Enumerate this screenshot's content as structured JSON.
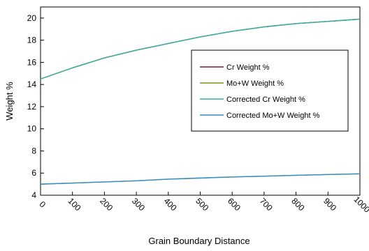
{
  "chart_data": {
    "type": "line",
    "xlabel": "Grain Boundary Distance",
    "ylabel": "Weight %",
    "xlim": [
      0,
      1000
    ],
    "ylim": [
      4,
      21
    ],
    "x_ticks": [
      "0",
      "100",
      "200",
      "300",
      "400",
      "500",
      "600",
      "700",
      "800",
      "900",
      "1000"
    ],
    "y_ticks": [
      "4",
      "6",
      "8",
      "10",
      "12",
      "14",
      "16",
      "18",
      "20"
    ],
    "grid": false,
    "legend_position": "right",
    "x": [
      0,
      100,
      200,
      300,
      400,
      500,
      600,
      700,
      800,
      900,
      1000
    ],
    "series": [
      {
        "name": "Cr Weight %",
        "color": "#8b1a1a",
        "values": [
          14.5,
          15.5,
          16.4,
          17.1,
          17.7,
          18.3,
          18.8,
          19.2,
          19.5,
          19.7,
          19.9
        ]
      },
      {
        "name": "Mo+W Weight %",
        "color": "#8c8c14",
        "values": [
          5.0,
          5.1,
          5.2,
          5.3,
          5.45,
          5.55,
          5.65,
          5.72,
          5.8,
          5.87,
          5.93
        ]
      },
      {
        "name": "Corrected Cr Weight %",
        "color": "#2fb3a3",
        "values": [
          14.5,
          15.5,
          16.4,
          17.1,
          17.7,
          18.3,
          18.8,
          19.2,
          19.5,
          19.7,
          19.9
        ]
      },
      {
        "name": "Corrected Mo+W Weight %",
        "color": "#2f8fd0",
        "values": [
          5.0,
          5.1,
          5.2,
          5.3,
          5.45,
          5.55,
          5.65,
          5.72,
          5.8,
          5.87,
          5.93
        ]
      }
    ]
  }
}
